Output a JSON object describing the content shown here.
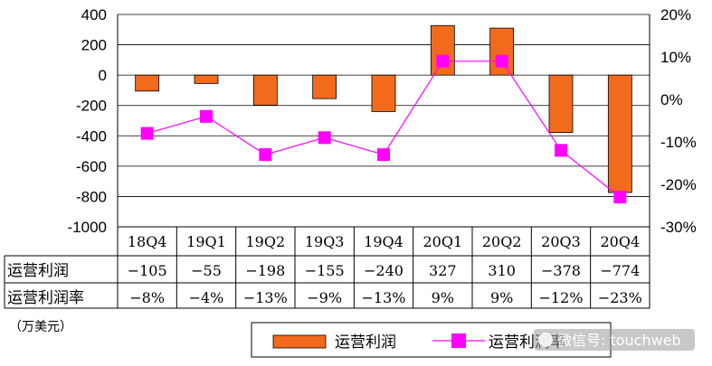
{
  "chart_data": {
    "type": "bar",
    "categories": [
      "18Q4",
      "19Q1",
      "19Q2",
      "19Q3",
      "19Q4",
      "20Q1",
      "20Q2",
      "20Q3",
      "20Q4"
    ],
    "series": [
      {
        "name": "运营利润",
        "type": "bar",
        "axis": "left",
        "color": "#f26b1d",
        "values": [
          -105,
          -55,
          -198,
          -155,
          -240,
          327,
          310,
          -378,
          -774
        ]
      },
      {
        "name": "运营利润率",
        "type": "line",
        "axis": "right",
        "color": "#ff00ff",
        "values": [
          -8,
          -4,
          -13,
          -9,
          -13,
          9,
          9,
          -12,
          -23
        ]
      }
    ],
    "y_left": {
      "range": [
        -1000,
        400
      ],
      "ticks": [
        "400",
        "200",
        "0",
        "-200",
        "-400",
        "-600",
        "-800",
        "-1000"
      ]
    },
    "y_right": {
      "range": [
        -30,
        20
      ],
      "ticks": [
        "20%",
        "10%",
        "0%",
        "-10%",
        "-20%",
        "-30%"
      ]
    },
    "grid": true,
    "legend_position": "bottom-right",
    "unit_label": "（万美元）",
    "table": {
      "rows": [
        {
          "label": "运营利润",
          "values": [
            "−105",
            "−55",
            "−198",
            "−155",
            "−240",
            "327",
            "310",
            "−378",
            "−774"
          ]
        },
        {
          "label": "运营利润率",
          "values": [
            "−8%",
            "−4%",
            "−13%",
            "−9%",
            "−13%",
            "9%",
            "9%",
            "−12%",
            "−23%"
          ]
        }
      ]
    }
  },
  "watermark": "微信号: touchweb"
}
